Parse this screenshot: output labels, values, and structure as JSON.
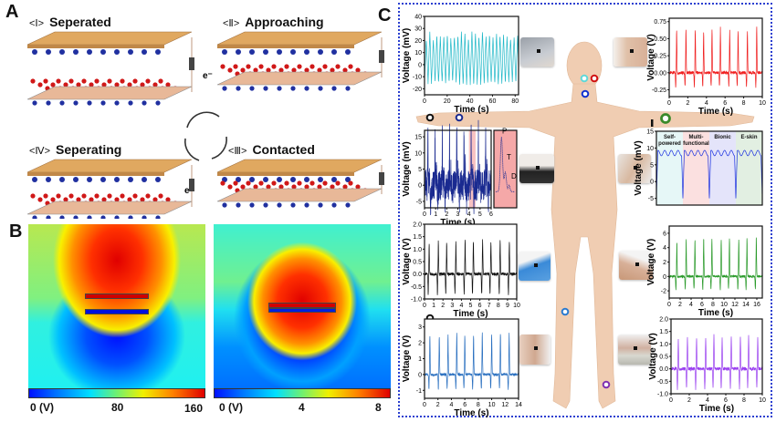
{
  "panels": {
    "a": "A",
    "b": "B",
    "c": "C"
  },
  "panel_a": {
    "devices": [
      {
        "numeral": "<Ⅰ>",
        "title": "Seperated",
        "state": "separated"
      },
      {
        "numeral": "<Ⅱ>",
        "title": "Approaching",
        "state": "approaching"
      },
      {
        "numeral": "<Ⅲ>",
        "title": "Contacted",
        "state": "contacted"
      },
      {
        "numeral": "<Ⅳ>",
        "title": "Seperating",
        "state": "separating"
      }
    ],
    "electron_label": "e⁻",
    "cycle_icon": "cycle-arrows-icon"
  },
  "panel_b": {
    "maps": [
      {
        "state": "separated",
        "colorbar": {
          "min": "0 (V)",
          "mid": "80",
          "max": "160"
        }
      },
      {
        "state": "contacted",
        "colorbar": {
          "min": "0 (V)",
          "mid": "4",
          "max": "8"
        }
      }
    ],
    "colormap": [
      "#0010ff",
      "#00e0ff",
      "#70f070",
      "#f0f000",
      "#ff8000",
      "#e00000"
    ]
  },
  "panel_c": {
    "border_color": "#2a3fd0",
    "markers": [
      {
        "site": "mouth",
        "color": "#5fd8d8"
      },
      {
        "site": "cheek",
        "color": "#d01010"
      },
      {
        "site": "neck",
        "color": "#1030d0"
      },
      {
        "site": "finger",
        "color": "#111111"
      },
      {
        "site": "wrist",
        "color": "#1a2a90"
      },
      {
        "site": "elbow",
        "color": "#3a8a2a"
      },
      {
        "site": "knee",
        "color": "#2a7ad0"
      },
      {
        "site": "ankle",
        "color": "#8030b0"
      },
      {
        "site": "finger-bend",
        "color": "#111111"
      }
    ],
    "bionic_segments": [
      "Self-powered",
      "Multi-functional",
      "Bionic",
      "E-skin"
    ],
    "bionic_colors": [
      "#e6f7f7",
      "#fbe0e0",
      "#e4e4fa",
      "#e2efe2"
    ],
    "inset_labels": [
      "P",
      "T",
      "D"
    ]
  },
  "chart_data": [
    {
      "type": "line",
      "site": "mouth",
      "color": "#20b8c8",
      "xlabel": "Time (s)",
      "ylabel": "Voltage (mV)",
      "xlim": [
        0,
        83
      ],
      "ylim": [
        -25,
        40
      ],
      "xticks": [
        0,
        20,
        40,
        60,
        80
      ],
      "yticks": [
        -20,
        -10,
        0,
        10,
        20,
        30,
        40
      ],
      "kind": "oscillation",
      "period": 3.1,
      "max": 28,
      "min": -18
    },
    {
      "type": "line",
      "site": "cheek",
      "color": "#f02020",
      "xlabel": "Time (s)",
      "ylabel": "Voltage (V)",
      "xlim": [
        0,
        10
      ],
      "ylim": [
        -0.35,
        0.8
      ],
      "xticks": [
        0,
        2,
        4,
        6,
        8,
        10
      ],
      "yticks": [
        -0.25,
        0.0,
        0.25,
        0.5,
        0.75
      ],
      "kind": "spikes",
      "trough": -0.2,
      "noise": 0.06,
      "peaks": [
        [
          0.8,
          0.62
        ],
        [
          1.8,
          0.64
        ],
        [
          2.8,
          0.63
        ],
        [
          3.7,
          0.6
        ],
        [
          4.6,
          0.62
        ],
        [
          5.5,
          0.66
        ],
        [
          6.5,
          0.63
        ],
        [
          7.4,
          0.62
        ],
        [
          8.4,
          0.6
        ],
        [
          9.4,
          0.66
        ]
      ]
    },
    {
      "type": "line",
      "site": "wrist",
      "color": "#1a2a90",
      "xlabel": "Time (s)",
      "ylabel": "Voltage (mV)",
      "xlim": [
        0,
        6
      ],
      "ylim": [
        -7,
        17
      ],
      "xticks": [
        0,
        1,
        2,
        3,
        4,
        5,
        6
      ],
      "yticks": [
        -5,
        0,
        5,
        10,
        15
      ],
      "kind": "pulse",
      "trough": -5,
      "noise": 0.6,
      "highlight": [
        4.0,
        4.6
      ],
      "highlight_color": "#f5a8a8",
      "peaks": [
        [
          0.3,
          15
        ],
        [
          0.95,
          16
        ],
        [
          1.6,
          15.5
        ],
        [
          2.25,
          15
        ],
        [
          2.9,
          15
        ],
        [
          3.55,
          15.5
        ],
        [
          4.2,
          16
        ],
        [
          4.85,
          15.5
        ],
        [
          5.5,
          15.5
        ]
      ]
    },
    {
      "type": "line",
      "site": "neck",
      "color": "#1a30e0",
      "xlabel": "",
      "ylabel": "Voltage (mV)",
      "xlim": [
        0,
        4
      ],
      "ylim": [
        -7,
        15
      ],
      "xticks": [],
      "yticks": [
        -5,
        0,
        5,
        10,
        15
      ],
      "kind": "plateaus",
      "level": 8.5,
      "drop": -5
    },
    {
      "type": "line",
      "site": "finger-bend",
      "color": "#111111",
      "xlabel": "Time (s)",
      "ylabel": "Voltage (V)",
      "xlim": [
        0,
        10
      ],
      "ylim": [
        -1,
        2
      ],
      "xticks": [
        0,
        1,
        2,
        3,
        4,
        5,
        6,
        7,
        8,
        9,
        10
      ],
      "yticks": [
        -1.0,
        -0.5,
        0.0,
        0.5,
        1.0,
        1.5,
        2.0
      ],
      "kind": "spikes",
      "trough": -0.8,
      "noise": 0.06,
      "peaks": [
        [
          0.5,
          1.2
        ],
        [
          1.5,
          1.3
        ],
        [
          2.4,
          1.25
        ],
        [
          3.4,
          1.3
        ],
        [
          4.4,
          1.35
        ],
        [
          5.3,
          1.3
        ],
        [
          6.3,
          1.35
        ],
        [
          7.2,
          1.3
        ],
        [
          8.2,
          1.35
        ],
        [
          9.2,
          1.3
        ]
      ]
    },
    {
      "type": "line",
      "site": "knee",
      "color": "#2a70c0",
      "xlabel": "Time (s)",
      "ylabel": "Voltage (V)",
      "xlim": [
        0,
        14
      ],
      "ylim": [
        -1.5,
        3.5
      ],
      "xticks": [
        0,
        2,
        4,
        6,
        8,
        10,
        12,
        14
      ],
      "yticks": [
        -1,
        0,
        1,
        2,
        3
      ],
      "kind": "spikes",
      "trough": -0.9,
      "noise": 0.05,
      "peaks": [
        [
          0.8,
          2.4
        ],
        [
          2.2,
          2.4
        ],
        [
          3.5,
          2.5
        ],
        [
          4.8,
          2.6
        ],
        [
          6.0,
          2.5
        ],
        [
          7.3,
          2.5
        ],
        [
          8.6,
          2.6
        ],
        [
          10.0,
          2.5
        ],
        [
          11.3,
          2.6
        ],
        [
          12.6,
          2.6
        ]
      ]
    },
    {
      "type": "line",
      "site": "elbow",
      "color": "#2a9a2a",
      "xlabel": "Time (s)",
      "ylabel": "Voltage (V)",
      "xlim": [
        0,
        17
      ],
      "ylim": [
        -3,
        7
      ],
      "xticks": [
        0,
        2,
        4,
        6,
        8,
        10,
        12,
        14,
        16
      ],
      "yticks": [
        -2,
        0,
        2,
        4,
        6
      ],
      "kind": "spikes",
      "trough": -1.8,
      "noise": 0.05,
      "peaks": [
        [
          1.4,
          4.8
        ],
        [
          3.1,
          5.1
        ],
        [
          4.7,
          5.0
        ],
        [
          6.3,
          5.3
        ],
        [
          7.8,
          5.1
        ],
        [
          9.5,
          5.2
        ],
        [
          11.0,
          5.2
        ],
        [
          12.7,
          5.1
        ],
        [
          14.2,
          5.4
        ],
        [
          15.9,
          5.4
        ]
      ]
    },
    {
      "type": "line",
      "site": "ankle",
      "color": "#9a40f0",
      "xlabel": "Time (s)",
      "ylabel": "Voltage (V)",
      "xlim": [
        0,
        10
      ],
      "ylim": [
        -1,
        2
      ],
      "xticks": [
        0,
        2,
        4,
        6,
        8,
        10
      ],
      "yticks": [
        -1.0,
        -0.5,
        0.0,
        0.5,
        1.0,
        1.5,
        2.0
      ],
      "kind": "spikes",
      "trough": -0.8,
      "noise": 0.07,
      "peaks": [
        [
          0.8,
          1.2
        ],
        [
          1.8,
          1.3
        ],
        [
          2.8,
          1.25
        ],
        [
          3.8,
          1.3
        ],
        [
          4.7,
          1.35
        ],
        [
          5.6,
          1.3
        ],
        [
          6.6,
          1.3
        ],
        [
          7.6,
          1.35
        ],
        [
          8.5,
          1.3
        ],
        [
          9.5,
          1.3
        ]
      ]
    }
  ]
}
